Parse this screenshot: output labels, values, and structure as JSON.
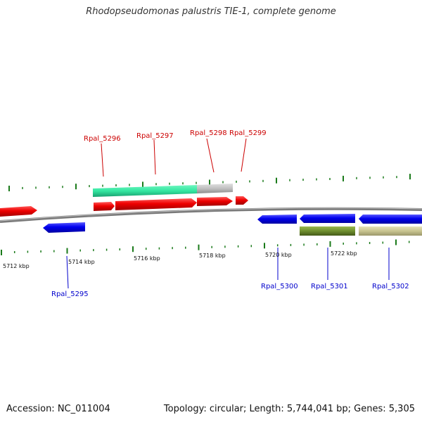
{
  "title": "Rhodopseudomonas palustris TIE-1, complete genome",
  "footer": {
    "accession": "Accession: NC_011004",
    "summary": "Topology: circular; Length: 5,744,041 bp; Genes: 5,305"
  },
  "colors": {
    "forward_gene": "#ff0000",
    "reverse_gene": "#0000ee",
    "forward_label": "#cc0000",
    "reverse_label": "#0000cc",
    "backbone": "#808080",
    "tick": "#1a7a1a",
    "highlight_green": "#33e6a0",
    "highlight_gray": "#c0c0c0",
    "olive": "#6e8e2e",
    "khaki": "#c8c490"
  },
  "scale": {
    "unit": "kbp",
    "ticks": [
      {
        "label": "5712 kbp"
      },
      {
        "label": "5714 kbp"
      },
      {
        "label": "5716 kbp"
      },
      {
        "label": "5718 kbp"
      },
      {
        "label": "5720 kbp"
      },
      {
        "label": "5722 kbp"
      }
    ]
  },
  "genes_forward": [
    {
      "name": "Rpal_5296"
    },
    {
      "name": "Rpal_5297"
    },
    {
      "name": "Rpal_5298"
    },
    {
      "name": "Rpal_5299"
    }
  ],
  "genes_reverse": [
    {
      "name": "Rpal_5295"
    },
    {
      "name": "Rpal_5300"
    },
    {
      "name": "Rpal_5301"
    },
    {
      "name": "Rpal_5302"
    }
  ]
}
